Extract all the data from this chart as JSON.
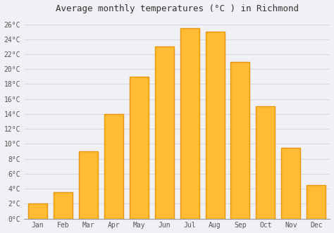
{
  "title": "Average monthly temperatures (°C ) in Richmond",
  "months": [
    "Jan",
    "Feb",
    "Mar",
    "Apr",
    "May",
    "Jun",
    "Jul",
    "Aug",
    "Sep",
    "Oct",
    "Nov",
    "Dec"
  ],
  "values": [
    2.0,
    3.5,
    9.0,
    14.0,
    19.0,
    23.0,
    25.5,
    25.0,
    21.0,
    15.0,
    9.5,
    4.5
  ],
  "bar_color": "#FFBB33",
  "bar_edge_color": "#E8960A",
  "background_color": "#f0f0f5",
  "plot_bg_color": "#f0f0f5",
  "grid_color": "#d8d8e8",
  "ytick_labels": [
    "0°C",
    "2°C",
    "4°C",
    "6°C",
    "8°C",
    "10°C",
    "12°C",
    "14°C",
    "16°C",
    "18°C",
    "20°C",
    "22°C",
    "24°C",
    "26°C"
  ],
  "ytick_values": [
    0,
    2,
    4,
    6,
    8,
    10,
    12,
    14,
    16,
    18,
    20,
    22,
    24,
    26
  ],
  "ylim": [
    0,
    27
  ],
  "title_fontsize": 9,
  "tick_fontsize": 7,
  "font_family": "monospace"
}
